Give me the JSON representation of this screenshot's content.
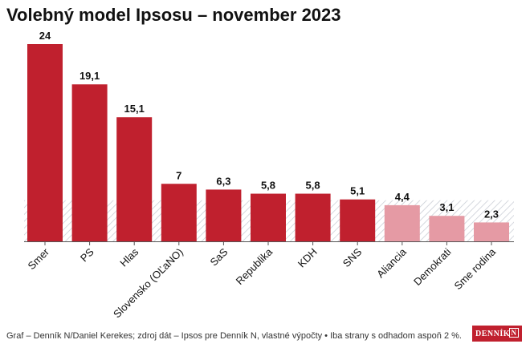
{
  "title": "Volebný model Ipsosu – november 2023",
  "footer": "Graf – Denník N/Daniel Kerekes; zdroj dát – Ipsos pre Denník N, vlastné výpočty • Iba strany s odhadom aspoň 2 %.",
  "logo": {
    "text": "DENNÍK",
    "mark": "N"
  },
  "colors": {
    "above_threshold": "#c0202e",
    "below_threshold": "#e59aa4",
    "threshold_hatch": "#c8ccd4",
    "axis": "#555555",
    "text": "#111111"
  },
  "chart_data": {
    "type": "bar",
    "categories": [
      "Smer",
      "PS",
      "Hlas",
      "Slovensko (OĽaNO)",
      "SaS",
      "Republika",
      "KDH",
      "SNS",
      "Aliancia",
      "Demokrati",
      "Sme rodina"
    ],
    "values": [
      24,
      19.1,
      15.1,
      7,
      6.3,
      5.8,
      5.8,
      5.1,
      4.4,
      3.1,
      2.3
    ],
    "value_labels": [
      "24",
      "19,1",
      "15,1",
      "7",
      "6,3",
      "5,8",
      "5,8",
      "5,1",
      "4,4",
      "3,1",
      "2,3"
    ],
    "threshold": 5,
    "ylim": [
      0,
      24
    ],
    "grid": false,
    "legend": "none",
    "xlabel": "",
    "ylabel": ""
  }
}
